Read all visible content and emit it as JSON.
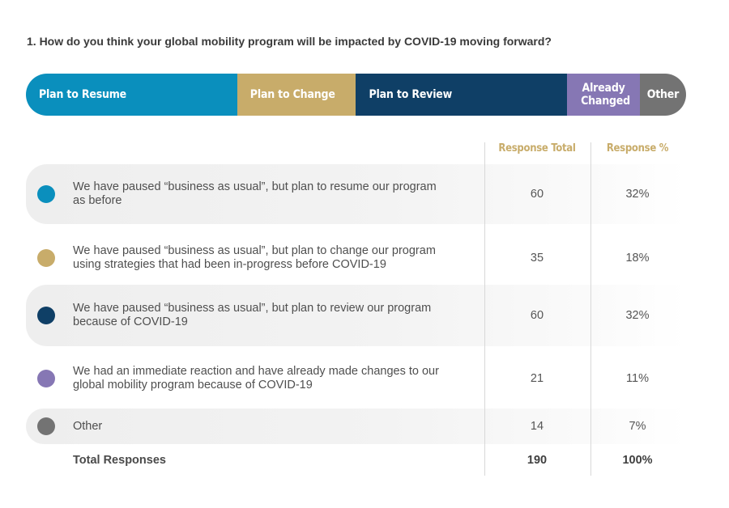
{
  "question": "1. How do you think your global mobility program will be impacted by COVID-19 moving forward?",
  "segments": [
    {
      "label": "Plan to Resume",
      "color": "#0a8fbd"
    },
    {
      "label": "Plan to Change",
      "color": "#c8ac6a"
    },
    {
      "label": "Plan to Review",
      "color": "#0f3f66"
    },
    {
      "label": "Already Changed",
      "color": "#8677b4"
    },
    {
      "label": "Other",
      "color": "#737373"
    }
  ],
  "columns": {
    "total": "Response Total",
    "percent": "Response %"
  },
  "rows": [
    {
      "text": "We have paused “business as usual”, but plan to resume our program as before",
      "total": "60",
      "percent": "32%",
      "color": "#0a8fbd"
    },
    {
      "text": "We have paused “business as usual”, but plan to change our program using strategies that had been in-progress before COVID-19",
      "total": "35",
      "percent": "18%",
      "color": "#c8ac6a"
    },
    {
      "text": "We have paused “business as usual”, but plan to review our program because of COVID-19",
      "total": "60",
      "percent": "32%",
      "color": "#0f3f66"
    },
    {
      "text": "We had an immediate reaction and have already made changes to our global mobility program because of COVID-19",
      "total": "21",
      "percent": "11%",
      "color": "#8677b4"
    },
    {
      "text": "Other",
      "total": "14",
      "percent": "7%",
      "color": "#737373"
    }
  ],
  "totals": {
    "label": "Total Responses",
    "total": "190",
    "percent": "100%"
  },
  "chart_data": {
    "type": "bar",
    "categories": [
      "Plan to Resume",
      "Plan to Change",
      "Plan to Review",
      "Already Changed",
      "Other"
    ],
    "values": [
      60,
      35,
      60,
      21,
      14
    ],
    "percentages": [
      32,
      18,
      32,
      11,
      7
    ],
    "total": 190
  }
}
